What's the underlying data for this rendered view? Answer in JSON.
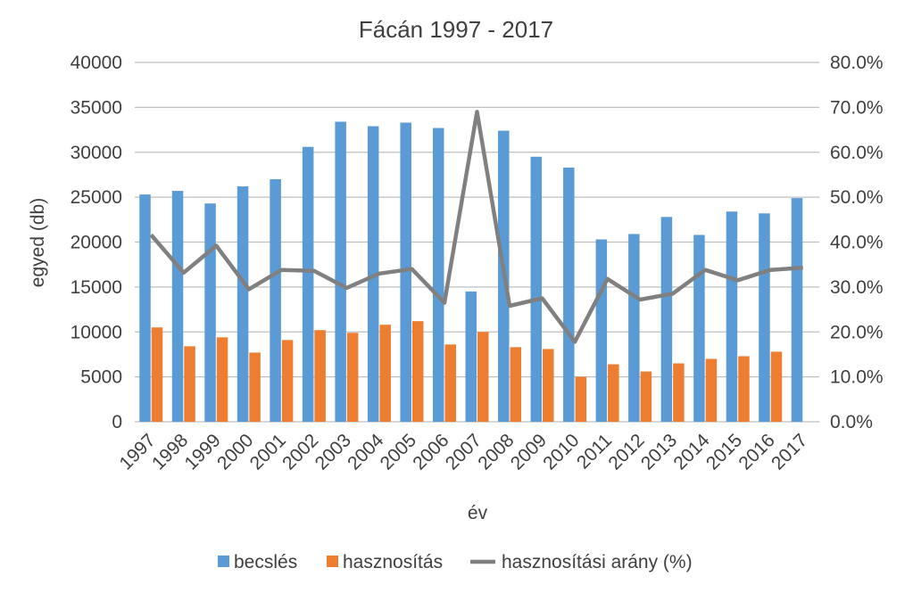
{
  "chart_data": {
    "type": "bar",
    "title": "Fácán 1997 - 2017",
    "xlabel": "év",
    "ylabel": "egyed (db)",
    "y2label": "",
    "ylim": [
      0,
      40000
    ],
    "y2lim": [
      0,
      0.8
    ],
    "yticks": [
      "0",
      "5000",
      "10000",
      "15000",
      "20000",
      "25000",
      "30000",
      "35000",
      "40000"
    ],
    "y2ticks": [
      "0.0%",
      "10.0%",
      "20.0%",
      "30.0%",
      "40.0%",
      "50.0%",
      "60.0%",
      "70.0%",
      "80.0%"
    ],
    "grid": true,
    "legend_position": "bottom",
    "categories": [
      "1997",
      "1998",
      "1999",
      "2000",
      "2001",
      "2002",
      "2003",
      "2004",
      "2005",
      "2006",
      "2007",
      "2008",
      "2009",
      "2010",
      "2011",
      "2012",
      "2013",
      "2014",
      "2015",
      "2016",
      "2017"
    ],
    "series": [
      {
        "name": "becslés",
        "type": "bar",
        "axis": "left",
        "color": "#5b9bd5",
        "values": [
          25300,
          25700,
          24300,
          26200,
          27000,
          30600,
          33400,
          32900,
          33300,
          32700,
          14500,
          32400,
          29500,
          28300,
          20300,
          20900,
          22800,
          20800,
          23400,
          23200,
          24900
        ]
      },
      {
        "name": "hasznosítás",
        "type": "bar",
        "axis": "left",
        "color": "#ed7d31",
        "values": [
          10500,
          8400,
          9400,
          7700,
          9100,
          10200,
          9900,
          10800,
          11200,
          8600,
          10000,
          8300,
          8100,
          5000,
          6400,
          5600,
          6500,
          7000,
          7300,
          7800,
          null
        ]
      },
      {
        "name": "hasznosítási arány (%)",
        "type": "line",
        "axis": "right",
        "color": "#808080",
        "values": [
          0.416,
          0.332,
          0.392,
          0.295,
          0.338,
          0.336,
          0.298,
          0.33,
          0.34,
          0.265,
          0.69,
          0.258,
          0.275,
          0.178,
          0.318,
          0.272,
          0.285,
          0.338,
          0.315,
          0.338,
          0.343
        ]
      }
    ]
  }
}
